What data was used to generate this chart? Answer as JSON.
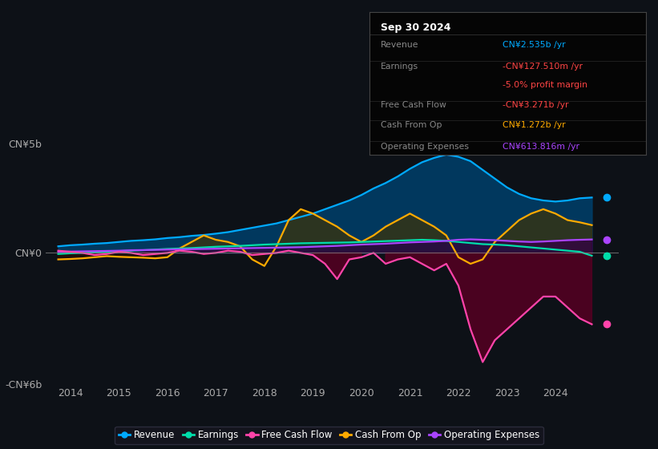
{
  "bg_color": "#0d1117",
  "plot_bg_color": "#0d1117",
  "title_box_date": "Sep 30 2024",
  "ylim": [
    -6,
    5
  ],
  "yticks": [
    -6,
    0,
    5
  ],
  "ytick_labels": [
    "-CN¥6b",
    "CN¥0",
    "CN¥5b"
  ],
  "xlim": [
    2013.5,
    2025.3
  ],
  "xticks": [
    2014,
    2015,
    2016,
    2017,
    2018,
    2019,
    2020,
    2021,
    2022,
    2023,
    2024
  ],
  "series": {
    "revenue": {
      "color": "#00aaff",
      "fill_color": "#003d66",
      "label": "Revenue",
      "x": [
        2013.75,
        2014.0,
        2014.25,
        2014.5,
        2014.75,
        2015.0,
        2015.25,
        2015.5,
        2015.75,
        2016.0,
        2016.25,
        2016.5,
        2016.75,
        2017.0,
        2017.25,
        2017.5,
        2017.75,
        2018.0,
        2018.25,
        2018.5,
        2018.75,
        2019.0,
        2019.25,
        2019.5,
        2019.75,
        2020.0,
        2020.25,
        2020.5,
        2020.75,
        2021.0,
        2021.25,
        2021.5,
        2021.75,
        2022.0,
        2022.25,
        2022.5,
        2022.75,
        2023.0,
        2023.25,
        2023.5,
        2023.75,
        2024.0,
        2024.25,
        2024.5,
        2024.75
      ],
      "y": [
        0.3,
        0.35,
        0.38,
        0.42,
        0.45,
        0.5,
        0.55,
        0.58,
        0.62,
        0.68,
        0.72,
        0.78,
        0.82,
        0.88,
        0.95,
        1.05,
        1.15,
        1.25,
        1.35,
        1.5,
        1.65,
        1.8,
        2.0,
        2.2,
        2.4,
        2.65,
        2.95,
        3.2,
        3.5,
        3.85,
        4.15,
        4.35,
        4.5,
        4.4,
        4.2,
        3.8,
        3.4,
        3.0,
        2.7,
        2.5,
        2.4,
        2.35,
        2.4,
        2.5,
        2.535
      ]
    },
    "earnings": {
      "color": "#00ddaa",
      "fill_color": "#004433",
      "label": "Earnings",
      "x": [
        2013.75,
        2014.0,
        2014.25,
        2014.5,
        2014.75,
        2015.0,
        2015.25,
        2015.5,
        2015.75,
        2016.0,
        2016.25,
        2016.5,
        2016.75,
        2017.0,
        2017.25,
        2017.5,
        2017.75,
        2018.0,
        2018.25,
        2018.5,
        2018.75,
        2019.0,
        2019.25,
        2019.5,
        2019.75,
        2020.0,
        2020.25,
        2020.5,
        2020.75,
        2021.0,
        2021.25,
        2021.5,
        2021.75,
        2022.0,
        2022.25,
        2022.5,
        2022.75,
        2023.0,
        2023.25,
        2023.5,
        2023.75,
        2024.0,
        2024.25,
        2024.5,
        2024.75
      ],
      "y": [
        -0.05,
        -0.02,
        0.0,
        0.02,
        0.05,
        0.08,
        0.1,
        0.12,
        0.15,
        0.18,
        0.2,
        0.22,
        0.25,
        0.28,
        0.3,
        0.32,
        0.35,
        0.38,
        0.4,
        0.42,
        0.44,
        0.45,
        0.46,
        0.47,
        0.48,
        0.5,
        0.52,
        0.54,
        0.56,
        0.58,
        0.6,
        0.58,
        0.55,
        0.5,
        0.45,
        0.4,
        0.38,
        0.35,
        0.3,
        0.25,
        0.2,
        0.15,
        0.1,
        0.05,
        -0.13
      ]
    },
    "free_cash_flow": {
      "color": "#ff44aa",
      "fill_color": "#550022",
      "label": "Free Cash Flow",
      "x": [
        2013.75,
        2014.0,
        2014.25,
        2014.5,
        2014.75,
        2015.0,
        2015.25,
        2015.5,
        2015.75,
        2016.0,
        2016.25,
        2016.5,
        2016.75,
        2017.0,
        2017.25,
        2017.5,
        2017.75,
        2018.0,
        2018.25,
        2018.5,
        2018.75,
        2019.0,
        2019.25,
        2019.5,
        2019.75,
        2020.0,
        2020.25,
        2020.5,
        2020.75,
        2021.0,
        2021.25,
        2021.5,
        2021.75,
        2022.0,
        2022.25,
        2022.5,
        2022.75,
        2023.0,
        2023.25,
        2023.5,
        2023.75,
        2024.0,
        2024.25,
        2024.5,
        2024.75
      ],
      "y": [
        0.1,
        0.05,
        0.0,
        -0.1,
        -0.05,
        0.05,
        0.0,
        -0.1,
        -0.05,
        0.0,
        0.1,
        0.05,
        -0.05,
        0.0,
        0.1,
        0.05,
        -0.1,
        -0.05,
        0.0,
        0.1,
        0.0,
        -0.1,
        -0.5,
        -1.2,
        -0.3,
        -0.2,
        0.0,
        -0.5,
        -0.3,
        -0.2,
        -0.5,
        -0.8,
        -0.5,
        -1.5,
        -3.5,
        -5.0,
        -4.0,
        -3.5,
        -3.0,
        -2.5,
        -2.0,
        -2.0,
        -2.5,
        -3.0,
        -3.27
      ]
    },
    "cash_from_op": {
      "color": "#ffaa00",
      "fill_color": "#443300",
      "label": "Cash From Op",
      "x": [
        2013.75,
        2014.0,
        2014.25,
        2014.5,
        2014.75,
        2015.0,
        2015.25,
        2015.5,
        2015.75,
        2016.0,
        2016.25,
        2016.5,
        2016.75,
        2017.0,
        2017.25,
        2017.5,
        2017.75,
        2018.0,
        2018.25,
        2018.5,
        2018.75,
        2019.0,
        2019.25,
        2019.5,
        2019.75,
        2020.0,
        2020.25,
        2020.5,
        2020.75,
        2021.0,
        2021.25,
        2021.5,
        2021.75,
        2022.0,
        2022.25,
        2022.5,
        2022.75,
        2023.0,
        2023.25,
        2023.5,
        2023.75,
        2024.0,
        2024.25,
        2024.5,
        2024.75
      ],
      "y": [
        -0.3,
        -0.28,
        -0.25,
        -0.2,
        -0.15,
        -0.18,
        -0.2,
        -0.22,
        -0.25,
        -0.2,
        0.2,
        0.5,
        0.8,
        0.6,
        0.5,
        0.3,
        -0.3,
        -0.6,
        0.3,
        1.5,
        2.0,
        1.8,
        1.5,
        1.2,
        0.8,
        0.5,
        0.8,
        1.2,
        1.5,
        1.8,
        1.5,
        1.2,
        0.8,
        -0.2,
        -0.5,
        -0.3,
        0.5,
        1.0,
        1.5,
        1.8,
        2.0,
        1.8,
        1.5,
        1.4,
        1.272
      ]
    },
    "operating_expenses": {
      "color": "#aa44ff",
      "fill_color": "#330044",
      "label": "Operating Expenses",
      "x": [
        2013.75,
        2014.0,
        2014.25,
        2014.5,
        2014.75,
        2015.0,
        2015.25,
        2015.5,
        2015.75,
        2016.0,
        2016.25,
        2016.5,
        2016.75,
        2017.0,
        2017.25,
        2017.5,
        2017.75,
        2018.0,
        2018.25,
        2018.5,
        2018.75,
        2019.0,
        2019.25,
        2019.5,
        2019.75,
        2020.0,
        2020.25,
        2020.5,
        2020.75,
        2021.0,
        2021.25,
        2021.5,
        2021.75,
        2022.0,
        2022.25,
        2022.5,
        2022.75,
        2023.0,
        2023.25,
        2023.5,
        2023.75,
        2024.0,
        2024.25,
        2024.5,
        2024.75
      ],
      "y": [
        0.05,
        0.06,
        0.07,
        0.08,
        0.09,
        0.1,
        0.12,
        0.13,
        0.14,
        0.15,
        0.16,
        0.17,
        0.18,
        0.19,
        0.2,
        0.21,
        0.22,
        0.23,
        0.24,
        0.25,
        0.26,
        0.28,
        0.3,
        0.32,
        0.35,
        0.38,
        0.4,
        0.42,
        0.45,
        0.48,
        0.5,
        0.52,
        0.55,
        0.6,
        0.62,
        0.6,
        0.58,
        0.55,
        0.52,
        0.5,
        0.52,
        0.55,
        0.58,
        0.6,
        0.614
      ]
    }
  },
  "legend_items": [
    {
      "label": "Revenue",
      "color": "#00aaff"
    },
    {
      "label": "Earnings",
      "color": "#00ddaa"
    },
    {
      "label": "Free Cash Flow",
      "color": "#ff44aa"
    },
    {
      "label": "Cash From Op",
      "color": "#ffaa00"
    },
    {
      "label": "Operating Expenses",
      "color": "#aa44ff"
    }
  ],
  "info_box_rows": [
    {
      "label": "Revenue",
      "value": "CN¥2.535b /yr",
      "value_color": "#00aaff",
      "has_sep": true
    },
    {
      "label": "Earnings",
      "value": "-CN¥127.510m /yr",
      "value_color": "#ff4444",
      "has_sep": false
    },
    {
      "label": "",
      "value": "-5.0% profit margin",
      "value_color": "#ff4444",
      "has_sep": true
    },
    {
      "label": "Free Cash Flow",
      "value": "-CN¥3.271b /yr",
      "value_color": "#ff4444",
      "has_sep": true
    },
    {
      "label": "Cash From Op",
      "value": "CN¥1.272b /yr",
      "value_color": "#ffaa00",
      "has_sep": true
    },
    {
      "label": "Operating Expenses",
      "value": "CN¥613.816m /yr",
      "value_color": "#aa44ff",
      "has_sep": false
    }
  ]
}
